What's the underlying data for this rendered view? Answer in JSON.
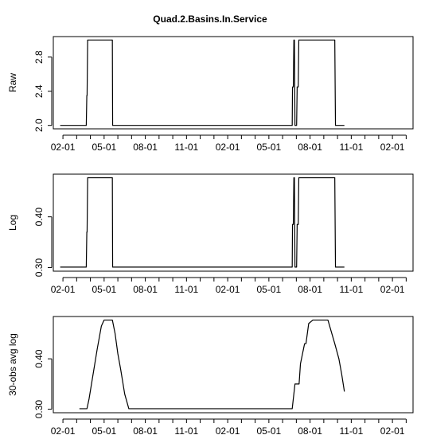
{
  "figure_title": "Quad.2.Basins.In.Service",
  "chart_data": [
    {
      "type": "line",
      "ylabel": "Raw",
      "ylim": [
        1.96,
        3.04
      ],
      "xlim": [
        0.3,
        26.5
      ],
      "yticks": [
        {
          "value": 2.0,
          "label": "2.0"
        },
        {
          "value": 2.4,
          "label": "2.4"
        },
        {
          "value": 2.8,
          "label": "2.8"
        }
      ],
      "xticks": [
        {
          "value": 1,
          "label": "02-01"
        },
        {
          "value": 2,
          "label": ""
        },
        {
          "value": 3,
          "label": ""
        },
        {
          "value": 4,
          "label": "05-01"
        },
        {
          "value": 5,
          "label": ""
        },
        {
          "value": 6,
          "label": ""
        },
        {
          "value": 7,
          "label": "08-01"
        },
        {
          "value": 8,
          "label": ""
        },
        {
          "value": 9,
          "label": ""
        },
        {
          "value": 10,
          "label": "11-01"
        },
        {
          "value": 11,
          "label": ""
        },
        {
          "value": 12,
          "label": ""
        },
        {
          "value": 13,
          "label": "02-01"
        },
        {
          "value": 14,
          "label": ""
        },
        {
          "value": 15,
          "label": ""
        },
        {
          "value": 16,
          "label": "05-01"
        },
        {
          "value": 17,
          "label": ""
        },
        {
          "value": 18,
          "label": ""
        },
        {
          "value": 19,
          "label": "08-01"
        },
        {
          "value": 20,
          "label": ""
        },
        {
          "value": 21,
          "label": ""
        },
        {
          "value": 22,
          "label": "11-01"
        },
        {
          "value": 23,
          "label": ""
        },
        {
          "value": 24,
          "label": ""
        },
        {
          "value": 25,
          "label": "02-01"
        },
        {
          "value": 26,
          "label": ""
        }
      ],
      "series": [
        {
          "x": [
            0.8,
            2.7,
            2.74,
            2.76,
            2.8,
            4.6,
            4.62,
            17.7,
            17.72,
            17.78,
            17.82,
            17.86,
            17.9,
            18.02,
            18.06,
            18.14,
            18.18,
            18.24,
            18.28,
            20.8,
            20.85,
            21.5
          ],
          "y": [
            2.0,
            2.0,
            2.35,
            2.35,
            3.0,
            3.0,
            2.0,
            2.0,
            2.45,
            2.45,
            3.0,
            3.0,
            2.0,
            2.0,
            2.45,
            2.45,
            3.0,
            3.0,
            3.0,
            3.0,
            2.0,
            2.0
          ]
        }
      ]
    },
    {
      "type": "line",
      "ylabel": "Log",
      "ylim": [
        0.293,
        0.484
      ],
      "xlim": [
        0.3,
        26.5
      ],
      "yticks": [
        {
          "value": 0.3,
          "label": "0.30"
        },
        {
          "value": 0.4,
          "label": "0.40"
        }
      ],
      "xticks": [
        {
          "value": 1,
          "label": "02-01"
        },
        {
          "value": 2,
          "label": ""
        },
        {
          "value": 3,
          "label": ""
        },
        {
          "value": 4,
          "label": "05-01"
        },
        {
          "value": 5,
          "label": ""
        },
        {
          "value": 6,
          "label": ""
        },
        {
          "value": 7,
          "label": "08-01"
        },
        {
          "value": 8,
          "label": ""
        },
        {
          "value": 9,
          "label": ""
        },
        {
          "value": 10,
          "label": "11-01"
        },
        {
          "value": 11,
          "label": ""
        },
        {
          "value": 12,
          "label": ""
        },
        {
          "value": 13,
          "label": "02-01"
        },
        {
          "value": 14,
          "label": ""
        },
        {
          "value": 15,
          "label": ""
        },
        {
          "value": 16,
          "label": "05-01"
        },
        {
          "value": 17,
          "label": ""
        },
        {
          "value": 18,
          "label": ""
        },
        {
          "value": 19,
          "label": "08-01"
        },
        {
          "value": 20,
          "label": ""
        },
        {
          "value": 21,
          "label": ""
        },
        {
          "value": 22,
          "label": "11-01"
        },
        {
          "value": 23,
          "label": ""
        },
        {
          "value": 24,
          "label": ""
        },
        {
          "value": 25,
          "label": "02-01"
        },
        {
          "value": 26,
          "label": ""
        }
      ],
      "series": [
        {
          "x": [
            0.8,
            2.7,
            2.74,
            2.76,
            2.8,
            4.6,
            4.62,
            17.7,
            17.72,
            17.78,
            17.82,
            17.86,
            17.9,
            18.02,
            18.06,
            18.14,
            18.18,
            18.24,
            18.28,
            20.8,
            20.85,
            21.5
          ],
          "y": [
            0.301,
            0.301,
            0.37,
            0.37,
            0.477,
            0.477,
            0.301,
            0.301,
            0.385,
            0.385,
            0.477,
            0.477,
            0.301,
            0.301,
            0.385,
            0.385,
            0.477,
            0.477,
            0.477,
            0.477,
            0.301,
            0.301
          ]
        }
      ]
    },
    {
      "type": "line",
      "ylabel": "30-obs avg log",
      "ylim": [
        0.293,
        0.484
      ],
      "xlim": [
        0.3,
        26.5
      ],
      "yticks": [
        {
          "value": 0.3,
          "label": "0.30"
        },
        {
          "value": 0.4,
          "label": "0.40"
        }
      ],
      "xticks": [
        {
          "value": 1,
          "label": "02-01"
        },
        {
          "value": 2,
          "label": ""
        },
        {
          "value": 3,
          "label": ""
        },
        {
          "value": 4,
          "label": "05-01"
        },
        {
          "value": 5,
          "label": ""
        },
        {
          "value": 6,
          "label": ""
        },
        {
          "value": 7,
          "label": "08-01"
        },
        {
          "value": 8,
          "label": ""
        },
        {
          "value": 9,
          "label": ""
        },
        {
          "value": 10,
          "label": "11-01"
        },
        {
          "value": 11,
          "label": ""
        },
        {
          "value": 12,
          "label": ""
        },
        {
          "value": 13,
          "label": "02-01"
        },
        {
          "value": 14,
          "label": ""
        },
        {
          "value": 15,
          "label": ""
        },
        {
          "value": 16,
          "label": "05-01"
        },
        {
          "value": 17,
          "label": ""
        },
        {
          "value": 18,
          "label": ""
        },
        {
          "value": 19,
          "label": "08-01"
        },
        {
          "value": 20,
          "label": ""
        },
        {
          "value": 21,
          "label": ""
        },
        {
          "value": 22,
          "label": "11-01"
        },
        {
          "value": 23,
          "label": ""
        },
        {
          "value": 24,
          "label": ""
        },
        {
          "value": 25,
          "label": "02-01"
        },
        {
          "value": 26,
          "label": ""
        }
      ],
      "series": [
        {
          "x": [
            2.2,
            2.75,
            2.9,
            3.2,
            3.5,
            3.8,
            4.0,
            4.4,
            4.6,
            4.8,
            5.0,
            5.2,
            5.5,
            5.8,
            17.7,
            17.9,
            18.2,
            18.3,
            18.6,
            18.7,
            18.9,
            19.2,
            19.5,
            20.3,
            20.8,
            21.1,
            21.3,
            21.5
          ],
          "y": [
            0.301,
            0.301,
            0.32,
            0.37,
            0.42,
            0.465,
            0.477,
            0.477,
            0.477,
            0.45,
            0.41,
            0.38,
            0.33,
            0.301,
            0.301,
            0.35,
            0.35,
            0.39,
            0.43,
            0.43,
            0.47,
            0.477,
            0.477,
            0.477,
            0.43,
            0.4,
            0.37,
            0.335
          ]
        }
      ]
    }
  ]
}
